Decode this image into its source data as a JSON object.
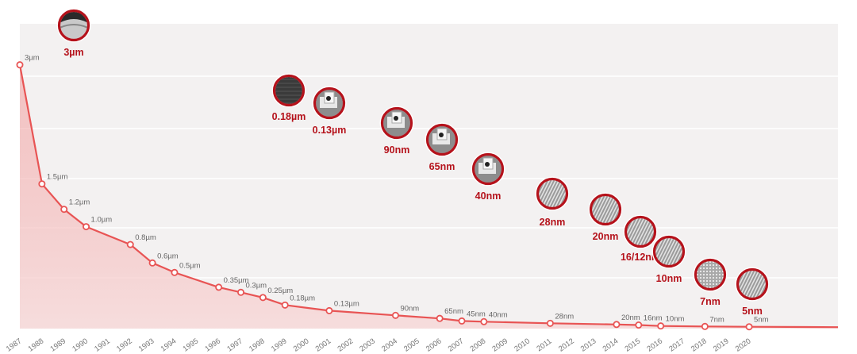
{
  "chart_data": {
    "type": "line",
    "title": "",
    "xlabel": "",
    "ylabel": "",
    "grid": true,
    "x_ticks": [
      "1987",
      "1988",
      "1989",
      "1990",
      "1991",
      "1992",
      "1993",
      "1994",
      "1995",
      "1996",
      "1997",
      "1998",
      "1999",
      "2000",
      "2001",
      "2002",
      "2003",
      "2004",
      "2005",
      "2006",
      "2007",
      "2008",
      "2009",
      "2010",
      "2011",
      "2012",
      "2013",
      "2014",
      "2015",
      "2016",
      "2017",
      "2018",
      "2019",
      "2020"
    ],
    "points": [
      {
        "year": "1987",
        "value_um": 3.0,
        "label": "3µm"
      },
      {
        "year": "1988",
        "value_um": 1.5,
        "label": "1.5µm"
      },
      {
        "year": "1989",
        "value_um": 1.2,
        "label": "1.2µm"
      },
      {
        "year": "1990",
        "value_um": 1.0,
        "label": "1.0µm"
      },
      {
        "year": "1992",
        "value_um": 0.8,
        "label": "0.8µm"
      },
      {
        "year": "1993",
        "value_um": 0.6,
        "label": "0.6µm"
      },
      {
        "year": "1994",
        "value_um": 0.5,
        "label": "0.5µm"
      },
      {
        "year": "1996",
        "value_um": 0.35,
        "label": "0.35µm"
      },
      {
        "year": "1997",
        "value_um": 0.3,
        "label": "0.3µm"
      },
      {
        "year": "1998",
        "value_um": 0.25,
        "label": "0.25µm"
      },
      {
        "year": "1999",
        "value_um": 0.18,
        "label": "0.18µm"
      },
      {
        "year": "2001",
        "value_um": 0.13,
        "label": "0.13µm"
      },
      {
        "year": "2004",
        "value_um": 0.09,
        "label": "90nm"
      },
      {
        "year": "2006",
        "value_um": 0.065,
        "label": "65nm"
      },
      {
        "year": "2007",
        "value_um": 0.045,
        "label": "45nm"
      },
      {
        "year": "2008",
        "value_um": 0.04,
        "label": "40nm"
      },
      {
        "year": "2011",
        "value_um": 0.028,
        "label": "28nm"
      },
      {
        "year": "2014",
        "value_um": 0.02,
        "label": "20nm"
      },
      {
        "year": "2015",
        "value_um": 0.016,
        "label": "16nm"
      },
      {
        "year": "2016",
        "value_um": 0.01,
        "label": "10nm"
      },
      {
        "year": "2018",
        "value_um": 0.007,
        "label": "7nm"
      },
      {
        "year": "2020",
        "value_um": 0.005,
        "label": "5nm"
      }
    ],
    "badges": [
      {
        "label": "3µm",
        "pattern": "arch"
      },
      {
        "label": "0.18µm",
        "pattern": "dark"
      },
      {
        "label": "0.13µm",
        "pattern": "transistor"
      },
      {
        "label": "90nm",
        "pattern": "transistor"
      },
      {
        "label": "65nm",
        "pattern": "transistor"
      },
      {
        "label": "40nm",
        "pattern": "transistor"
      },
      {
        "label": "28nm",
        "pattern": "fins"
      },
      {
        "label": "20nm",
        "pattern": "fins"
      },
      {
        "label": "16/12nm",
        "pattern": "fins"
      },
      {
        "label": "10nm",
        "pattern": "fins"
      },
      {
        "label": "7nm",
        "pattern": "mesh"
      },
      {
        "label": "5nm",
        "pattern": "fins"
      }
    ],
    "colors": {
      "line": "#e85454",
      "fill": "#f7c9c9",
      "badge_ring": "#b5121b",
      "badge_label": "#b5121b",
      "plot_bg": "#f3f1f1",
      "grid": "#ffffff",
      "text": "#666666"
    }
  }
}
